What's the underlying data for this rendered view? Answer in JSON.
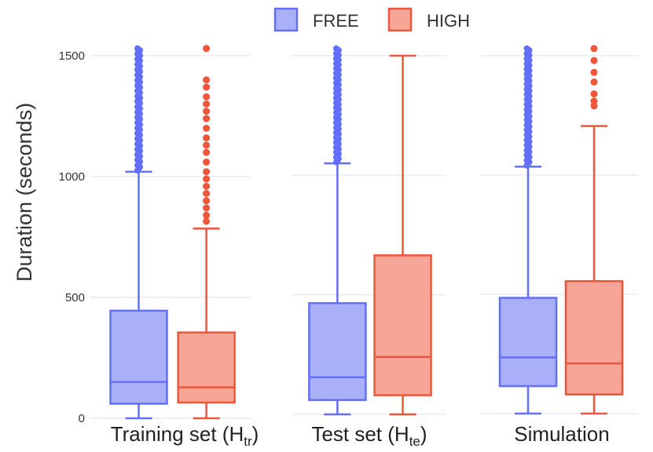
{
  "legend": {
    "items": [
      {
        "label": "FREE",
        "fill": "#aab0f7",
        "stroke": "#636efa"
      },
      {
        "label": "HIGH",
        "fill": "#f6a597",
        "stroke": "#ef553b"
      }
    ]
  },
  "chart_data": {
    "type": "box",
    "ylabel": "Duration (seconds)",
    "yticks": [
      "0",
      "500",
      "1000",
      "1500"
    ],
    "ylim": [
      0,
      1530
    ],
    "grid": true,
    "legend_position": "top-center",
    "series": [
      {
        "name": "FREE",
        "color": "#636efa",
        "fill": "#aab0f7"
      },
      {
        "name": "HIGH",
        "color": "#ef553b",
        "fill": "#f6a597"
      }
    ],
    "panels": [
      {
        "label": "Training set (H",
        "label_sub": "tr",
        "label_suffix": ")",
        "boxes": [
          {
            "series": "FREE",
            "min": 0,
            "q1": 60,
            "median": 150,
            "q3": 445,
            "max": 1020,
            "outlier_range": [
              1025,
              1530
            ]
          },
          {
            "series": "HIGH",
            "min": 0,
            "q1": 65,
            "median": 128,
            "q3": 355,
            "max": 785,
            "outliers": [
              815,
              840,
              870,
              900,
              930,
              960,
              990,
              1020,
              1060,
              1100,
              1130,
              1160,
              1200,
              1240,
              1270,
              1300,
              1330,
              1370,
              1400,
              1530
            ]
          }
        ]
      },
      {
        "label": "Test set (H",
        "label_sub": "te",
        "label_suffix": ")",
        "boxes": [
          {
            "series": "FREE",
            "min": 0,
            "q1": 60,
            "median": 155,
            "q3": 465,
            "max": 1050,
            "outlier_range": [
              1055,
              1530
            ]
          },
          {
            "series": "HIGH",
            "min": 0,
            "q1": 80,
            "median": 240,
            "q3": 665,
            "max": 1500
          }
        ]
      },
      {
        "label": "Simulation",
        "boxes": [
          {
            "series": "FREE",
            "min": 0,
            "q1": 115,
            "median": 235,
            "q3": 485,
            "max": 1035,
            "outlier_range": [
              1040,
              1530
            ]
          },
          {
            "series": "HIGH",
            "min": 0,
            "q1": 80,
            "median": 210,
            "q3": 555,
            "max": 1205,
            "outliers": [
              1290,
              1310,
              1340,
              1390,
              1430,
              1480,
              1530
            ]
          }
        ]
      }
    ]
  }
}
